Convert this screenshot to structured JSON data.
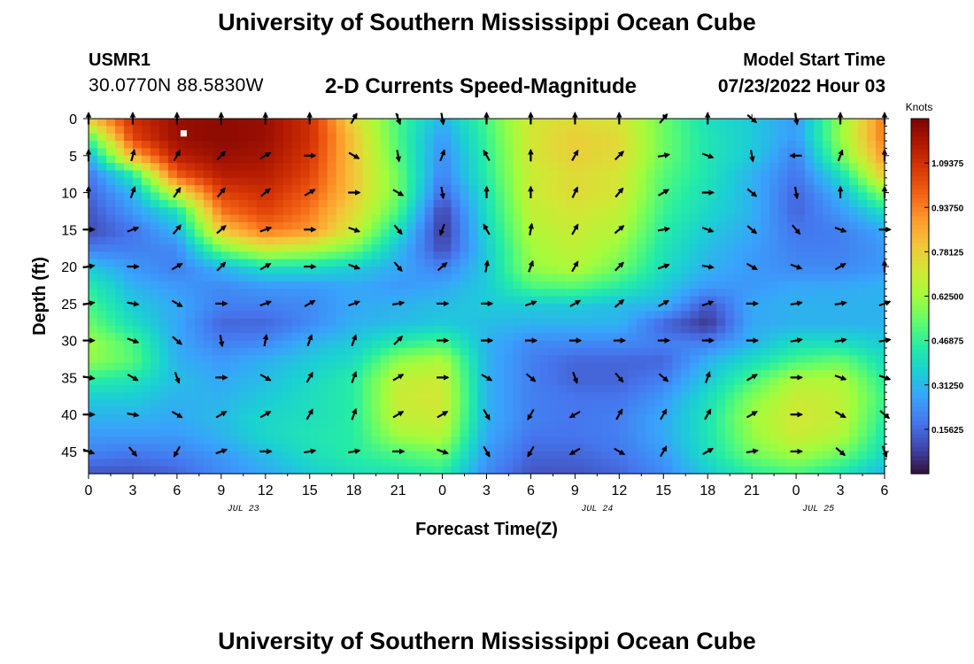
{
  "header": {
    "title": "University of Southern Mississippi Ocean Cube",
    "station_id": "USMR1",
    "station_coords": "30.0770N  88.5830W",
    "plot_title": "2-D Currents Speed-Magnitude",
    "model_start_label": "Model Start Time",
    "model_start_value": "07/23/2022 Hour 03"
  },
  "footer": {
    "title": "University of Southern Mississippi Ocean Cube"
  },
  "chart_data": {
    "type": "heatmap",
    "title": "2-D Currents Speed-Magnitude",
    "xlabel": "Forecast Time(Z)",
    "ylabel": "Depth (ft)",
    "x_ticks": [
      "0",
      "3",
      "6",
      "9",
      "12",
      "15",
      "18",
      "21",
      "0",
      "3",
      "6",
      "9",
      "12",
      "15",
      "18",
      "21",
      "0",
      "3",
      "6"
    ],
    "y_ticks": [
      "0",
      "5",
      "10",
      "15",
      "20",
      "25",
      "30",
      "35",
      "40",
      "45"
    ],
    "ylim": [
      0,
      48
    ],
    "date_labels": [
      {
        "text": "JUL 23",
        "x_tick": 3.5
      },
      {
        "text": "JUL 24",
        "x_tick": 11.5
      },
      {
        "text": "JUL 25",
        "x_tick": 16.5
      }
    ],
    "colorbar": {
      "label": "Knots",
      "ticks": [
        "0.15625",
        "0.31250",
        "0.46875",
        "0.62500",
        "0.78125",
        "0.93750",
        "1.09375"
      ],
      "range": [
        0,
        1.25
      ],
      "colors": [
        "#30123b",
        "#4145ab",
        "#4675ed",
        "#39a2fc",
        "#1bcfd4",
        "#24eca6",
        "#61fc6c",
        "#a4fc3b",
        "#d1e834",
        "#f3c63a",
        "#fe9b2d",
        "#f36315",
        "#d93806",
        "#b11901",
        "#7a0403"
      ]
    },
    "grid_cols": [
      "0",
      "1",
      "2",
      "3",
      "4",
      "5",
      "6",
      "7",
      "8",
      "9",
      "10",
      "11",
      "12",
      "13",
      "14",
      "15",
      "16",
      "17",
      "18"
    ],
    "grid_rows": [
      "0",
      "2.5",
      "5",
      "7.5",
      "10",
      "12.5",
      "15",
      "17.5",
      "20",
      "22.5",
      "25",
      "27.5",
      "30",
      "32.5",
      "35",
      "37.5",
      "40",
      "42.5",
      "45",
      "47.5"
    ],
    "speed_grid": [
      [
        0.8,
        1.1,
        1.2,
        1.22,
        1.2,
        1.1,
        0.75,
        0.5,
        0.3,
        0.5,
        0.72,
        0.75,
        0.72,
        0.55,
        0.4,
        0.35,
        0.25,
        0.6,
        0.95
      ],
      [
        0.5,
        1.05,
        1.2,
        1.22,
        1.2,
        1.1,
        0.8,
        0.5,
        0.25,
        0.48,
        0.72,
        0.78,
        0.75,
        0.55,
        0.42,
        0.35,
        0.25,
        0.6,
        0.95
      ],
      [
        0.3,
        0.85,
        1.15,
        1.2,
        1.18,
        1.08,
        0.8,
        0.52,
        0.22,
        0.46,
        0.72,
        0.78,
        0.75,
        0.55,
        0.42,
        0.35,
        0.2,
        0.55,
        0.9
      ],
      [
        0.18,
        0.45,
        1.0,
        1.15,
        1.15,
        1.05,
        0.8,
        0.55,
        0.2,
        0.45,
        0.7,
        0.75,
        0.72,
        0.52,
        0.42,
        0.3,
        0.18,
        0.4,
        0.8
      ],
      [
        0.15,
        0.3,
        0.7,
        1.05,
        1.1,
        1.0,
        0.8,
        0.55,
        0.15,
        0.42,
        0.7,
        0.75,
        0.72,
        0.5,
        0.4,
        0.3,
        0.15,
        0.3,
        0.6
      ],
      [
        0.12,
        0.25,
        0.4,
        0.95,
        1.05,
        0.95,
        0.75,
        0.5,
        0.08,
        0.4,
        0.68,
        0.72,
        0.68,
        0.48,
        0.38,
        0.3,
        0.15,
        0.25,
        0.4
      ],
      [
        0.1,
        0.18,
        0.3,
        0.8,
        0.95,
        0.9,
        0.7,
        0.4,
        0.06,
        0.38,
        0.65,
        0.7,
        0.65,
        0.45,
        0.35,
        0.28,
        0.18,
        0.2,
        0.28
      ],
      [
        0.2,
        0.2,
        0.22,
        0.55,
        0.7,
        0.65,
        0.55,
        0.32,
        0.1,
        0.35,
        0.62,
        0.68,
        0.6,
        0.42,
        0.32,
        0.26,
        0.2,
        0.2,
        0.25
      ],
      [
        0.35,
        0.25,
        0.2,
        0.3,
        0.4,
        0.4,
        0.35,
        0.28,
        0.2,
        0.35,
        0.6,
        0.65,
        0.55,
        0.4,
        0.3,
        0.25,
        0.22,
        0.22,
        0.25
      ],
      [
        0.45,
        0.3,
        0.25,
        0.22,
        0.25,
        0.25,
        0.28,
        0.25,
        0.28,
        0.35,
        0.5,
        0.52,
        0.45,
        0.35,
        0.25,
        0.25,
        0.28,
        0.28,
        0.3
      ],
      [
        0.5,
        0.35,
        0.28,
        0.2,
        0.2,
        0.22,
        0.28,
        0.3,
        0.32,
        0.35,
        0.35,
        0.35,
        0.32,
        0.3,
        0.12,
        0.28,
        0.3,
        0.3,
        0.3
      ],
      [
        0.55,
        0.4,
        0.28,
        0.15,
        0.15,
        0.22,
        0.3,
        0.32,
        0.35,
        0.32,
        0.3,
        0.3,
        0.3,
        0.15,
        0.06,
        0.28,
        0.3,
        0.3,
        0.3
      ],
      [
        0.62,
        0.5,
        0.28,
        0.2,
        0.22,
        0.3,
        0.35,
        0.45,
        0.5,
        0.3,
        0.22,
        0.22,
        0.22,
        0.2,
        0.2,
        0.3,
        0.4,
        0.4,
        0.35
      ],
      [
        0.6,
        0.52,
        0.3,
        0.25,
        0.3,
        0.35,
        0.4,
        0.6,
        0.65,
        0.3,
        0.2,
        0.15,
        0.15,
        0.15,
        0.3,
        0.4,
        0.5,
        0.55,
        0.4
      ],
      [
        0.45,
        0.42,
        0.32,
        0.28,
        0.32,
        0.38,
        0.45,
        0.68,
        0.7,
        0.3,
        0.2,
        0.15,
        0.15,
        0.2,
        0.35,
        0.5,
        0.65,
        0.65,
        0.45
      ],
      [
        0.35,
        0.35,
        0.3,
        0.3,
        0.35,
        0.4,
        0.45,
        0.7,
        0.72,
        0.3,
        0.2,
        0.18,
        0.18,
        0.25,
        0.4,
        0.58,
        0.7,
        0.68,
        0.48
      ],
      [
        0.3,
        0.3,
        0.28,
        0.32,
        0.38,
        0.4,
        0.45,
        0.68,
        0.7,
        0.3,
        0.2,
        0.18,
        0.2,
        0.28,
        0.42,
        0.62,
        0.72,
        0.68,
        0.45
      ],
      [
        0.25,
        0.25,
        0.25,
        0.3,
        0.38,
        0.42,
        0.45,
        0.62,
        0.65,
        0.28,
        0.18,
        0.18,
        0.2,
        0.28,
        0.42,
        0.6,
        0.7,
        0.65,
        0.42
      ],
      [
        0.2,
        0.18,
        0.2,
        0.25,
        0.32,
        0.4,
        0.45,
        0.5,
        0.55,
        0.25,
        0.15,
        0.15,
        0.18,
        0.25,
        0.4,
        0.55,
        0.62,
        0.55,
        0.38
      ],
      [
        0.12,
        0.12,
        0.15,
        0.22,
        0.28,
        0.35,
        0.4,
        0.42,
        0.45,
        0.22,
        0.12,
        0.12,
        0.15,
        0.22,
        0.35,
        0.45,
        0.5,
        0.42,
        0.3
      ]
    ],
    "vector_times": [
      "0",
      "1",
      "2",
      "3",
      "4",
      "5",
      "6",
      "7",
      "8",
      "9",
      "10",
      "11",
      "12",
      "13",
      "14",
      "15",
      "16",
      "17",
      "18"
    ],
    "vector_depths": [
      "0",
      "5",
      "10",
      "15",
      "20",
      "25",
      "30",
      "35",
      "40",
      "45"
    ],
    "vector_directions": [
      [
        0,
        0,
        0,
        0,
        0,
        0,
        30,
        160,
        170,
        0,
        0,
        0,
        0,
        40,
        0,
        130,
        170,
        0,
        0
      ],
      [
        0,
        15,
        30,
        45,
        60,
        90,
        120,
        170,
        20,
        330,
        0,
        30,
        45,
        80,
        110,
        170,
        270,
        20,
        0
      ],
      [
        0,
        20,
        35,
        40,
        50,
        60,
        90,
        120,
        170,
        0,
        0,
        25,
        40,
        60,
        90,
        130,
        170,
        0,
        0
      ],
      [
        90,
        70,
        40,
        50,
        70,
        90,
        110,
        140,
        200,
        330,
        10,
        30,
        50,
        80,
        110,
        130,
        140,
        110,
        90
      ],
      [
        80,
        90,
        60,
        45,
        60,
        90,
        110,
        140,
        50,
        10,
        20,
        30,
        45,
        70,
        100,
        120,
        110,
        60,
        0
      ],
      [
        80,
        100,
        120,
        90,
        70,
        60,
        70,
        80,
        90,
        90,
        70,
        60,
        50,
        60,
        70,
        90,
        80,
        80,
        70
      ],
      [
        90,
        110,
        130,
        170,
        10,
        20,
        20,
        45,
        90,
        90,
        90,
        90,
        90,
        90,
        90,
        90,
        80,
        80,
        80
      ],
      [
        100,
        120,
        160,
        90,
        120,
        30,
        20,
        60,
        90,
        120,
        130,
        160,
        140,
        130,
        20,
        60,
        90,
        110,
        110
      ],
      [
        90,
        100,
        120,
        60,
        60,
        30,
        20,
        60,
        60,
        150,
        210,
        240,
        30,
        30,
        30,
        60,
        90,
        120,
        130
      ],
      [
        110,
        140,
        210,
        70,
        90,
        80,
        80,
        90,
        110,
        150,
        210,
        240,
        120,
        30,
        60,
        80,
        90,
        130,
        160
      ]
    ],
    "marker": {
      "x": 2.15,
      "y": 2
    }
  }
}
